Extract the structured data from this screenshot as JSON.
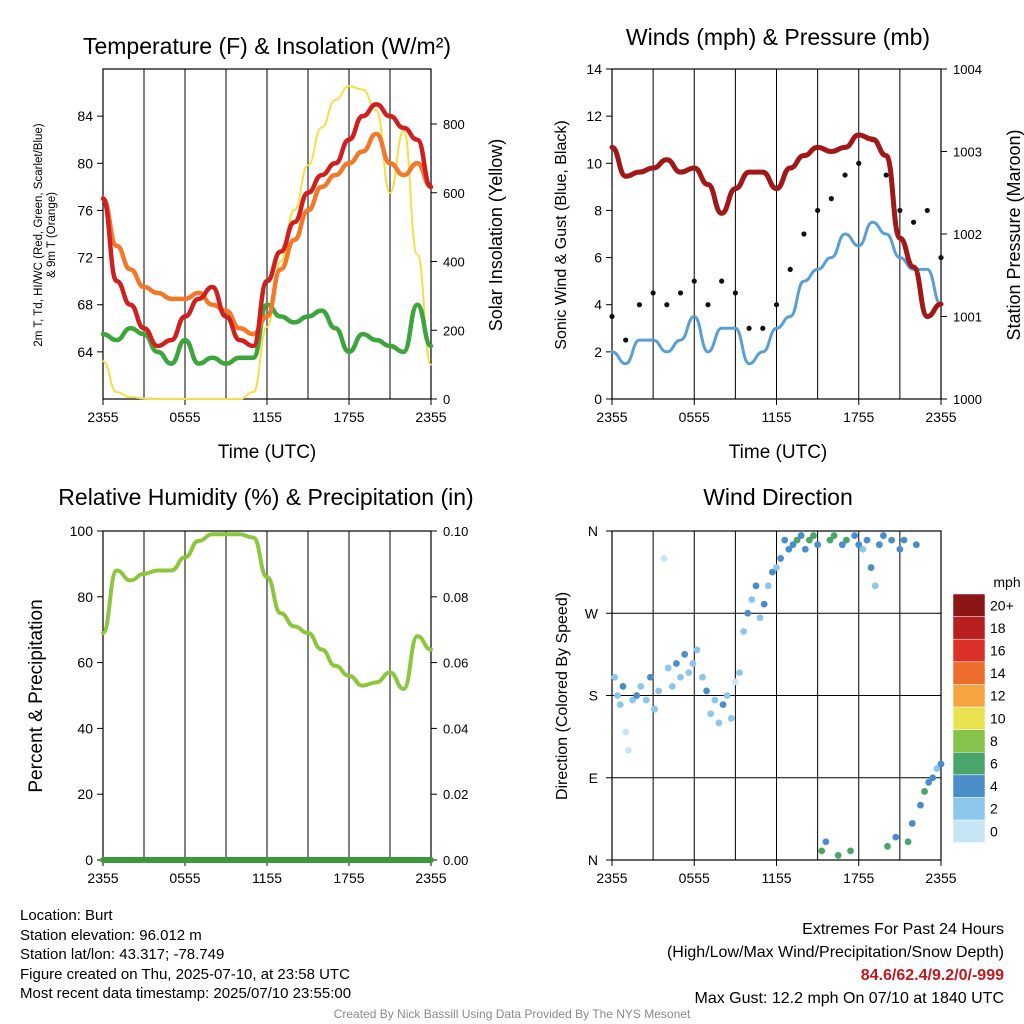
{
  "panels": {
    "temperature": {
      "title": "Temperature (F) & Insolation (W/m²)",
      "ylabel_left_line1": "2m T, Td, HI/WC (Red, Green, Scarlet/Blue)",
      "ylabel_left_line2": "& 9m T (Orange)",
      "ylabel_right": "Solar Insolation (Yellow)",
      "xlabel": "Time (UTC)",
      "x_ticks": [
        "2355",
        "0555",
        "1155",
        "1755",
        "2355"
      ],
      "y_ticks_left": [
        "64",
        "68",
        "72",
        "76",
        "80",
        "84"
      ],
      "y_ticks_right": [
        "0",
        "200",
        "400",
        "600",
        "800"
      ]
    },
    "winds": {
      "title": "Winds (mph) & Pressure (mb)",
      "ylabel_left": "Sonic Wind & Gust (Blue, Black)",
      "ylabel_right": "Station Pressure (Maroon)",
      "xlabel": "Time (UTC)",
      "x_ticks": [
        "2355",
        "0555",
        "1155",
        "1755",
        "2355"
      ],
      "y_ticks_left": [
        "0",
        "2",
        "4",
        "6",
        "8",
        "10",
        "12",
        "14"
      ],
      "y_ticks_right": [
        "1000",
        "1001",
        "1002",
        "1003",
        "1004"
      ]
    },
    "humidity": {
      "title": "Relative Humidity (%) & Precipitation (in)",
      "ylabel_left": "Percent & Precipitation",
      "x_ticks": [
        "2355",
        "0555",
        "1155",
        "1755",
        "2355"
      ],
      "y_ticks_left": [
        "0",
        "20",
        "40",
        "60",
        "80",
        "100"
      ],
      "y_ticks_right": [
        "0.00",
        "0.02",
        "0.04",
        "0.06",
        "0.08",
        "0.10"
      ]
    },
    "wind_direction": {
      "title": "Wind Direction",
      "ylabel_left": "Direction (Colored By Speed)",
      "x_ticks": [
        "2355",
        "0555",
        "1155",
        "1755",
        "2355"
      ],
      "y_ticks_left": [
        "N",
        "E",
        "S",
        "W",
        "N"
      ],
      "colorbar_unit": "mph",
      "colorbar_labels": [
        "0",
        "2",
        "4",
        "6",
        "8",
        "10",
        "12",
        "14",
        "16",
        "18",
        "20+"
      ],
      "colorbar_colors": [
        "#c6e6f8",
        "#8cc6ea",
        "#4a8ec9",
        "#4aa56a",
        "#86c34a",
        "#e8e24f",
        "#f6a441",
        "#ee6c2c",
        "#dc3128",
        "#b81f20",
        "#8e1516"
      ]
    }
  },
  "footer": {
    "location": "Location: Burt",
    "elevation": "Station elevation: 96.012 m",
    "latlon": "Station lat/lon: 43.317; -78.749",
    "created": "Figure created on Thu, 2025-07-10, at 23:58 UTC",
    "recent": "Most recent data timestamp: 2025/07/10 23:55:00",
    "extremes_title": "Extremes For Past 24 Hours",
    "extremes_sub": "(High/Low/Max Wind/Precipitation/Snow Depth)",
    "extremes_values": "84.6/62.4/9.2/0/-999",
    "max_gust": "Max Gust: 12.2 mph On 07/10 at 1840 UTC",
    "credit": "Created By Nick Bassill Using Data Provided By The NYS Mesonet"
  },
  "chart_data": [
    {
      "type": "line",
      "panel": "temperature",
      "x_hours_utc": [
        0,
        1,
        2,
        3,
        4,
        5,
        6,
        7,
        8,
        9,
        10,
        11,
        12,
        13,
        14,
        15,
        16,
        17,
        18,
        19,
        20,
        21,
        22,
        23,
        24
      ],
      "ylim": [
        60,
        88
      ],
      "y2lim": [
        0,
        960
      ],
      "series": [
        {
          "color": "#d01f1f",
          "values": [
            77,
            70,
            68,
            66,
            64.5,
            65,
            67,
            68.5,
            69.5,
            67,
            65,
            64.5,
            70,
            72.5,
            75,
            77.5,
            79,
            80,
            82,
            84,
            85,
            84,
            83,
            82,
            78
          ]
        },
        {
          "color": "#3ca63c",
          "values": [
            65.5,
            65,
            66,
            65.5,
            64,
            63,
            65,
            63,
            63.5,
            63,
            63.5,
            63.5,
            68,
            67,
            66.5,
            67,
            67.5,
            66,
            64,
            65.5,
            65,
            64.5,
            64,
            68,
            64.5
          ]
        },
        {
          "color": "#f07a2a",
          "values": [
            77,
            73,
            71,
            69.5,
            69,
            68.5,
            68.5,
            69,
            68,
            67.5,
            66,
            65.5,
            67,
            71,
            73.5,
            76,
            78,
            79,
            80,
            81,
            82.5,
            80,
            79,
            80,
            78
          ]
        },
        {
          "axis": "right",
          "color": "#f4df48",
          "values": [
            110,
            20,
            5,
            2,
            0,
            0,
            0,
            0,
            0,
            0,
            0,
            20,
            210,
            400,
            550,
            680,
            790,
            870,
            910,
            900,
            840,
            600,
            780,
            420,
            100
          ]
        }
      ]
    },
    {
      "type": "line",
      "panel": "winds",
      "x_hours_utc": [
        0,
        1,
        2,
        3,
        4,
        5,
        6,
        7,
        8,
        9,
        10,
        11,
        12,
        13,
        14,
        15,
        16,
        17,
        18,
        19,
        20,
        21,
        22,
        23,
        24
      ],
      "ylim": [
        0,
        14
      ],
      "y2lim": [
        1000,
        1004
      ],
      "series": [
        {
          "color": "#5a9fd4",
          "values": [
            2,
            1.5,
            2.5,
            2.5,
            2,
            2.5,
            3.5,
            2,
            3,
            3,
            1.5,
            2,
            3,
            3.5,
            5,
            5.5,
            6,
            7,
            6.5,
            7.5,
            7,
            6,
            5.5,
            5.5,
            4
          ]
        },
        {
          "color": "#111111",
          "values": [
            3.5,
            2.5,
            4,
            4.5,
            4,
            4.5,
            5,
            4,
            5,
            4.5,
            3,
            3,
            4,
            5.5,
            7,
            8,
            8.5,
            9.5,
            10,
            11,
            9.5,
            8,
            7.5,
            8,
            6
          ]
        },
        {
          "axis": "right",
          "color": "#a01818",
          "values": [
            1003.05,
            1002.7,
            1002.75,
            1002.8,
            1002.9,
            1002.75,
            1002.8,
            1002.6,
            1002.25,
            1002.55,
            1002.75,
            1002.75,
            1002.55,
            1002.8,
            1002.95,
            1003.05,
            1003.0,
            1003.05,
            1003.2,
            1003.15,
            1002.95,
            1001.95,
            1001.6,
            1001.0,
            1001.15
          ]
        }
      ]
    },
    {
      "type": "line",
      "panel": "humidity",
      "x_hours_utc": [
        0,
        1,
        2,
        3,
        4,
        5,
        6,
        7,
        8,
        9,
        10,
        11,
        12,
        13,
        14,
        15,
        16,
        17,
        18,
        19,
        20,
        21,
        22,
        23,
        24
      ],
      "ylim": [
        0,
        100
      ],
      "y2lim": [
        0,
        0.1
      ],
      "series": [
        {
          "color": "#8cc63f",
          "values": [
            69,
            88,
            85,
            87,
            88,
            88,
            92,
            97,
            99,
            99,
            99,
            98,
            86,
            75,
            71,
            69,
            64,
            59,
            56,
            53,
            54,
            57,
            52,
            68,
            64
          ]
        },
        {
          "axis": "right",
          "color": "#3a9a3a",
          "values": [
            0,
            0,
            0,
            0,
            0,
            0,
            0,
            0,
            0,
            0,
            0,
            0,
            0,
            0,
            0,
            0,
            0,
            0,
            0,
            0,
            0,
            0,
            0,
            0,
            0
          ]
        }
      ]
    },
    {
      "type": "scatter",
      "panel": "wind_direction",
      "ylim": [
        0,
        360
      ],
      "points": [
        [
          0.2,
          200,
          2
        ],
        [
          0.4,
          180,
          3
        ],
        [
          0.6,
          170,
          2
        ],
        [
          0.8,
          190,
          4
        ],
        [
          1.0,
          140,
          1
        ],
        [
          1.2,
          120,
          1
        ],
        [
          1.5,
          175,
          3
        ],
        [
          1.8,
          180,
          4
        ],
        [
          2.1,
          190,
          2
        ],
        [
          2.5,
          175,
          3
        ],
        [
          2.8,
          200,
          4
        ],
        [
          3.1,
          165,
          2
        ],
        [
          3.4,
          185,
          3
        ],
        [
          3.8,
          330,
          1
        ],
        [
          4.1,
          210,
          2
        ],
        [
          4.4,
          190,
          3
        ],
        [
          4.7,
          215,
          4
        ],
        [
          5.0,
          200,
          3
        ],
        [
          5.3,
          225,
          4
        ],
        [
          5.6,
          205,
          2
        ],
        [
          5.9,
          215,
          3
        ],
        [
          6.2,
          230,
          3
        ],
        [
          6.6,
          200,
          2
        ],
        [
          6.9,
          185,
          4
        ],
        [
          7.2,
          160,
          3
        ],
        [
          7.5,
          175,
          2
        ],
        [
          7.8,
          150,
          3
        ],
        [
          8.1,
          170,
          4
        ],
        [
          8.4,
          180,
          3
        ],
        [
          8.7,
          155,
          2
        ],
        [
          9.0,
          195,
          1
        ],
        [
          9.3,
          205,
          3
        ],
        [
          9.6,
          250,
          2
        ],
        [
          9.9,
          270,
          4
        ],
        [
          10.2,
          285,
          3
        ],
        [
          10.5,
          300,
          4
        ],
        [
          10.8,
          265,
          3
        ],
        [
          11.1,
          280,
          4
        ],
        [
          11.4,
          300,
          3
        ],
        [
          11.7,
          315,
          4
        ],
        [
          12.0,
          320,
          3
        ],
        [
          12.3,
          330,
          5
        ],
        [
          12.6,
          350,
          4
        ],
        [
          12.9,
          340,
          5
        ],
        [
          13.2,
          345,
          4
        ],
        [
          13.5,
          350,
          6
        ],
        [
          13.8,
          355,
          5
        ],
        [
          14.1,
          340,
          4
        ],
        [
          14.4,
          350,
          6
        ],
        [
          14.7,
          355,
          7
        ],
        [
          15.0,
          345,
          5
        ],
        [
          15.3,
          10,
          6
        ],
        [
          15.6,
          20,
          5
        ],
        [
          15.9,
          350,
          7
        ],
        [
          16.2,
          355,
          6
        ],
        [
          16.5,
          5,
          7
        ],
        [
          16.8,
          345,
          4
        ],
        [
          17.1,
          350,
          6
        ],
        [
          17.4,
          10,
          7
        ],
        [
          17.7,
          355,
          5
        ],
        [
          18.0,
          345,
          4
        ],
        [
          18.3,
          340,
          3
        ],
        [
          18.6,
          350,
          5
        ],
        [
          18.9,
          320,
          4
        ],
        [
          19.2,
          300,
          3
        ],
        [
          19.5,
          345,
          4
        ],
        [
          19.8,
          355,
          5
        ],
        [
          20.1,
          15,
          6
        ],
        [
          20.4,
          350,
          5
        ],
        [
          20.7,
          25,
          4
        ],
        [
          21.0,
          340,
          4
        ],
        [
          21.3,
          350,
          5
        ],
        [
          21.6,
          20,
          6
        ],
        [
          21.9,
          40,
          5
        ],
        [
          22.2,
          345,
          4
        ],
        [
          22.5,
          60,
          5
        ],
        [
          22.8,
          75,
          6
        ],
        [
          23.1,
          85,
          5
        ],
        [
          23.4,
          90,
          4
        ],
        [
          23.7,
          100,
          3
        ],
        [
          24.0,
          105,
          4
        ]
      ]
    }
  ]
}
